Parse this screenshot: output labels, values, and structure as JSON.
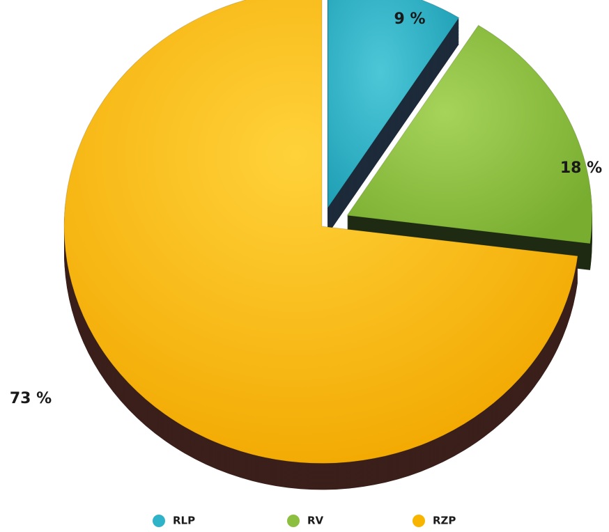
{
  "chart_data": {
    "type": "pie",
    "start_angle_deg": 0,
    "direction": "clockwise",
    "exploded": [
      "RLP",
      "RV"
    ],
    "legend_position": "bottom",
    "slices": [
      {
        "label": "RLP",
        "value": 9,
        "display": "9 %",
        "color": "#2fb3c8"
      },
      {
        "label": "RV",
        "value": 18,
        "display": "18 %",
        "color": "#8cbf3f"
      },
      {
        "label": "RZP",
        "value": 73,
        "display": "73 %",
        "color": "#f7b500"
      }
    ]
  }
}
